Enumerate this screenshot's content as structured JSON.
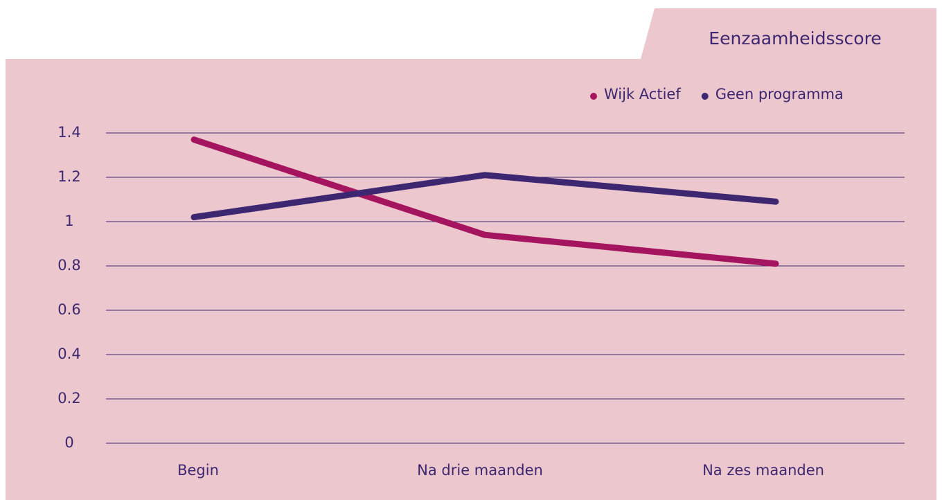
{
  "chart_data": {
    "type": "line",
    "title": "Eenzaamheidsscore",
    "categories": [
      "Begin",
      "Na drie maanden",
      "Na zes maanden"
    ],
    "series": [
      {
        "name": "Wijk Actief",
        "color": "#a5155f",
        "values": [
          1.37,
          0.94,
          0.81
        ]
      },
      {
        "name": "Geen programma",
        "color": "#3d2770",
        "values": [
          1.02,
          1.21,
          1.09
        ]
      }
    ],
    "ylim": [
      0,
      1.4
    ],
    "yticks": [
      0,
      0.2,
      0.4,
      0.6,
      0.8,
      1,
      1.2,
      1.4
    ],
    "grid": true,
    "legend": "top-right"
  }
}
